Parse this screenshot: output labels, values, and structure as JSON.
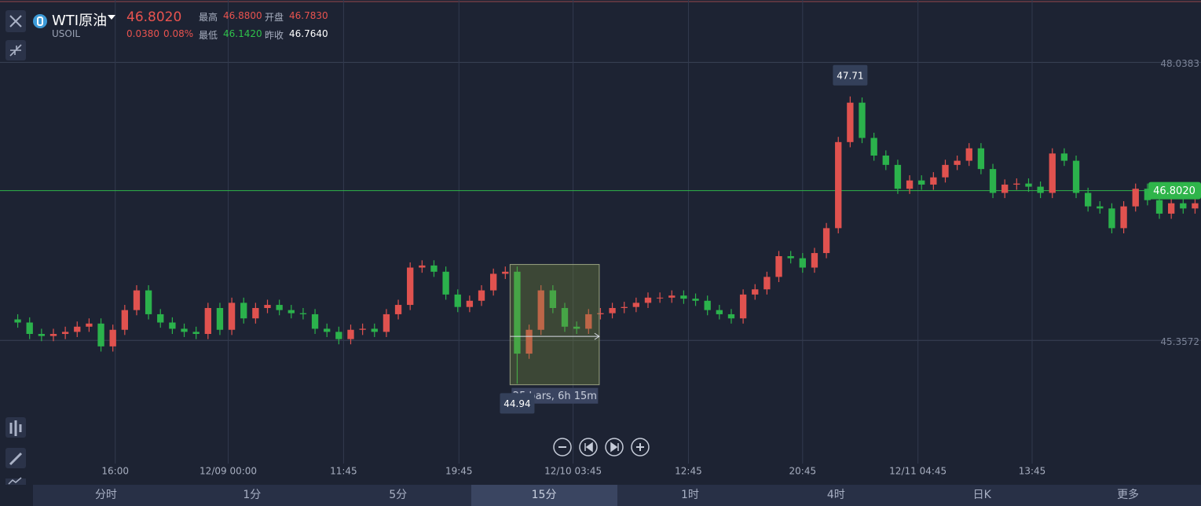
{
  "header": {
    "name": "WTI原油",
    "symbol": "USOIL",
    "price": "46.8020",
    "change": "0.0380",
    "change_pct": "0.08%",
    "stats": [
      {
        "label": "最高",
        "value": "46.8800"
      },
      {
        "label": "开盘",
        "value": "46.7830"
      },
      {
        "label": "最低",
        "value": "46.1420"
      },
      {
        "label": "昨收",
        "value": "46.7640"
      }
    ]
  },
  "chart_data": {
    "type": "candlestick",
    "up_color": "#e0524f",
    "down_color": "#2bb24c",
    "grid": true,
    "xlim": [
      0,
      100
    ],
    "ylim": [
      44.17,
      48.64
    ],
    "yticks": [
      48.0383,
      45.3572
    ],
    "xticks": [
      {
        "value": 8.7,
        "label": "16:00"
      },
      {
        "value": 18.2,
        "label": "12/09 00:00"
      },
      {
        "value": 27.9,
        "label": "11:45"
      },
      {
        "value": 37.6,
        "label": "19:45"
      },
      {
        "value": 47.2,
        "label": "12/10 03:45"
      },
      {
        "value": 56.9,
        "label": "12:45"
      },
      {
        "value": 66.5,
        "label": "20:45"
      },
      {
        "value": 76.2,
        "label": "12/11 04:45"
      },
      {
        "value": 85.8,
        "label": "13:45"
      }
    ],
    "last_price": {
      "value": 46.802,
      "label": "46.8020",
      "color": "#2fb54a"
    },
    "open": [
      45.56,
      45.53,
      45.42,
      45.4,
      45.42,
      45.44,
      45.49,
      45.52,
      45.3,
      45.46,
      45.65,
      45.84,
      45.61,
      45.53,
      45.47,
      45.44,
      45.42,
      45.67,
      45.46,
      45.72,
      45.57,
      45.67,
      45.7,
      45.65,
      45.62,
      45.61,
      45.47,
      45.44,
      45.37,
      45.46,
      45.47,
      45.44,
      45.61,
      45.7,
      46.06,
      46.08,
      46.02,
      45.8,
      45.68,
      45.74,
      45.84,
      46.0,
      46.02,
      45.23,
      45.46,
      45.84,
      45.67,
      45.49,
      45.47,
      45.61,
      45.62,
      45.67,
      45.68,
      45.72,
      45.77,
      45.77,
      45.79,
      45.76,
      45.74,
      45.65,
      45.61,
      45.57,
      45.8,
      45.85,
      45.97,
      46.17,
      46.15,
      46.06,
      46.2,
      46.44,
      47.27,
      47.65,
      47.31,
      47.14,
      47.05,
      46.82,
      46.9,
      46.86,
      46.93,
      47.05,
      47.09,
      47.21,
      47.01,
      46.78,
      46.86,
      46.87,
      46.84,
      46.78,
      47.16,
      47.09,
      46.78,
      46.65,
      46.63,
      46.44,
      46.65,
      46.82,
      46.71,
      46.58,
      46.68,
      46.63
    ],
    "high": [
      45.61,
      45.58,
      45.47,
      45.47,
      45.49,
      45.54,
      45.57,
      45.57,
      45.51,
      45.7,
      45.89,
      45.89,
      45.66,
      45.58,
      45.52,
      45.49,
      45.72,
      45.72,
      45.77,
      45.77,
      45.72,
      45.75,
      45.75,
      45.7,
      45.67,
      45.66,
      45.52,
      45.49,
      45.51,
      45.52,
      45.52,
      45.66,
      45.75,
      46.11,
      46.13,
      46.13,
      46.07,
      45.85,
      45.79,
      45.89,
      46.05,
      46.07,
      46.07,
      45.51,
      45.89,
      45.89,
      45.72,
      45.54,
      45.66,
      45.67,
      45.72,
      45.73,
      45.77,
      45.82,
      45.82,
      45.84,
      45.84,
      45.81,
      45.79,
      45.7,
      45.66,
      45.85,
      45.9,
      46.02,
      46.22,
      46.22,
      46.2,
      46.25,
      46.49,
      47.32,
      47.71,
      47.7,
      47.36,
      47.19,
      47.1,
      46.95,
      46.95,
      46.98,
      47.1,
      47.14,
      47.26,
      47.26,
      47.06,
      46.91,
      46.92,
      46.92,
      46.89,
      47.21,
      47.21,
      47.14,
      46.83,
      46.7,
      46.68,
      46.7,
      46.87,
      46.87,
      46.76,
      46.73,
      46.73,
      46.73
    ],
    "low": [
      45.48,
      45.37,
      45.35,
      45.35,
      45.37,
      45.39,
      45.44,
      45.25,
      45.25,
      45.41,
      45.6,
      45.56,
      45.48,
      45.42,
      45.39,
      45.37,
      45.37,
      45.41,
      45.41,
      45.52,
      45.52,
      45.62,
      45.6,
      45.57,
      45.56,
      45.42,
      45.39,
      45.32,
      45.32,
      45.41,
      45.39,
      45.39,
      45.56,
      45.65,
      46.01,
      45.97,
      45.75,
      45.63,
      45.63,
      45.69,
      45.79,
      45.95,
      44.94,
      45.18,
      45.41,
      45.62,
      45.44,
      45.42,
      45.42,
      45.56,
      45.57,
      45.62,
      45.63,
      45.67,
      45.72,
      45.72,
      45.71,
      45.69,
      45.6,
      45.56,
      45.52,
      45.52,
      45.75,
      45.8,
      45.92,
      46.1,
      46.01,
      46.01,
      46.15,
      46.39,
      47.22,
      47.26,
      47.09,
      47.0,
      46.77,
      46.77,
      46.81,
      46.81,
      46.88,
      47.0,
      47.04,
      46.96,
      46.73,
      46.73,
      46.81,
      46.79,
      46.73,
      46.73,
      47.04,
      46.73,
      46.6,
      46.58,
      46.39,
      46.39,
      46.6,
      46.66,
      46.53,
      46.53,
      46.58,
      46.58
    ],
    "close": [
      45.53,
      45.42,
      45.4,
      45.42,
      45.44,
      45.49,
      45.52,
      45.3,
      45.46,
      45.65,
      45.84,
      45.61,
      45.53,
      45.47,
      45.44,
      45.42,
      45.67,
      45.46,
      45.72,
      45.57,
      45.67,
      45.7,
      45.65,
      45.62,
      45.61,
      45.47,
      45.44,
      45.37,
      45.46,
      45.47,
      45.44,
      45.61,
      45.7,
      46.06,
      46.08,
      46.02,
      45.8,
      45.68,
      45.74,
      45.84,
      46.0,
      46.02,
      45.23,
      45.46,
      45.84,
      45.67,
      45.49,
      45.47,
      45.61,
      45.62,
      45.67,
      45.68,
      45.72,
      45.77,
      45.77,
      45.79,
      45.76,
      45.74,
      45.65,
      45.61,
      45.57,
      45.8,
      45.85,
      45.97,
      46.17,
      46.15,
      46.06,
      46.2,
      46.44,
      47.27,
      47.65,
      47.31,
      47.14,
      47.05,
      46.82,
      46.9,
      46.86,
      46.93,
      47.05,
      47.09,
      47.21,
      47.01,
      46.78,
      46.86,
      46.87,
      46.84,
      46.78,
      47.16,
      47.09,
      46.78,
      46.65,
      46.63,
      46.44,
      46.65,
      46.82,
      46.71,
      46.58,
      46.68,
      46.63,
      46.68
    ],
    "annotations": [
      {
        "value": 47.71,
        "x": 70.5,
        "position": "above"
      },
      {
        "value": 44.94,
        "x": 42.5,
        "position": "below"
      }
    ],
    "measure": {
      "label": "25 bars, 6h 15m",
      "xrange": [
        41.9,
        49.4
      ],
      "yrange": [
        44.93,
        46.09
      ]
    }
  },
  "tabs": [
    "分时",
    "1分",
    "5分",
    "15分",
    "1时",
    "4时",
    "日K",
    "更多"
  ],
  "active_tab": 3
}
